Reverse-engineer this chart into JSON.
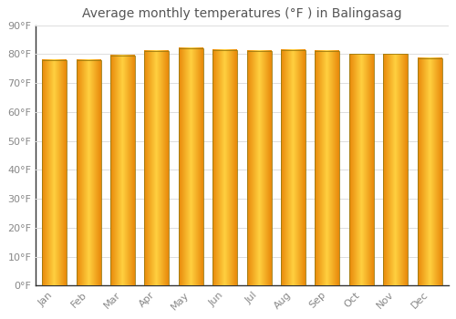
{
  "title": "Average monthly temperatures (°F ) in Balingasag",
  "months": [
    "Jan",
    "Feb",
    "Mar",
    "Apr",
    "May",
    "Jun",
    "Jul",
    "Aug",
    "Sep",
    "Oct",
    "Nov",
    "Dec"
  ],
  "values": [
    78,
    78,
    79.5,
    81,
    82,
    81.5,
    81,
    81.5,
    81,
    80,
    80,
    78.5
  ],
  "bar_edge_color": "#888844",
  "background_color": "#FFFFFF",
  "grid_color": "#DDDDDD",
  "title_fontsize": 10,
  "tick_fontsize": 8,
  "ylim": [
    0,
    90
  ],
  "yticks": [
    0,
    10,
    20,
    30,
    40,
    50,
    60,
    70,
    80,
    90
  ],
  "gradient_left": "#E8880A",
  "gradient_center": "#FFD040",
  "gradient_right": "#E8880A"
}
